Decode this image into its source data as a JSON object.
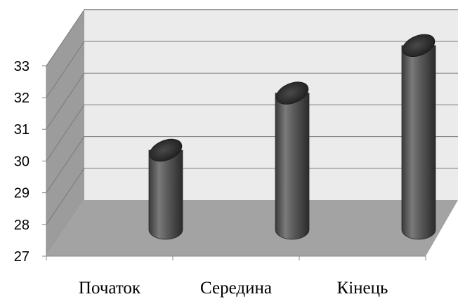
{
  "chart_data": {
    "type": "bar",
    "shape": "cylinder",
    "three_d": true,
    "categories": [
      "Початок",
      "Середина",
      "Кінець"
    ],
    "values": [
      29.5,
      31.3,
      32.8
    ],
    "ylim": [
      27,
      33
    ],
    "yticks": [
      27,
      28,
      29,
      30,
      31,
      32,
      33
    ],
    "grid": true,
    "legend": false,
    "colors": {
      "bar": "#555555",
      "back_wall": "#ebebeb",
      "side_wall": "#9c9c9c",
      "floor": "#a3a3a3",
      "grid": "#7a7a7a"
    }
  }
}
